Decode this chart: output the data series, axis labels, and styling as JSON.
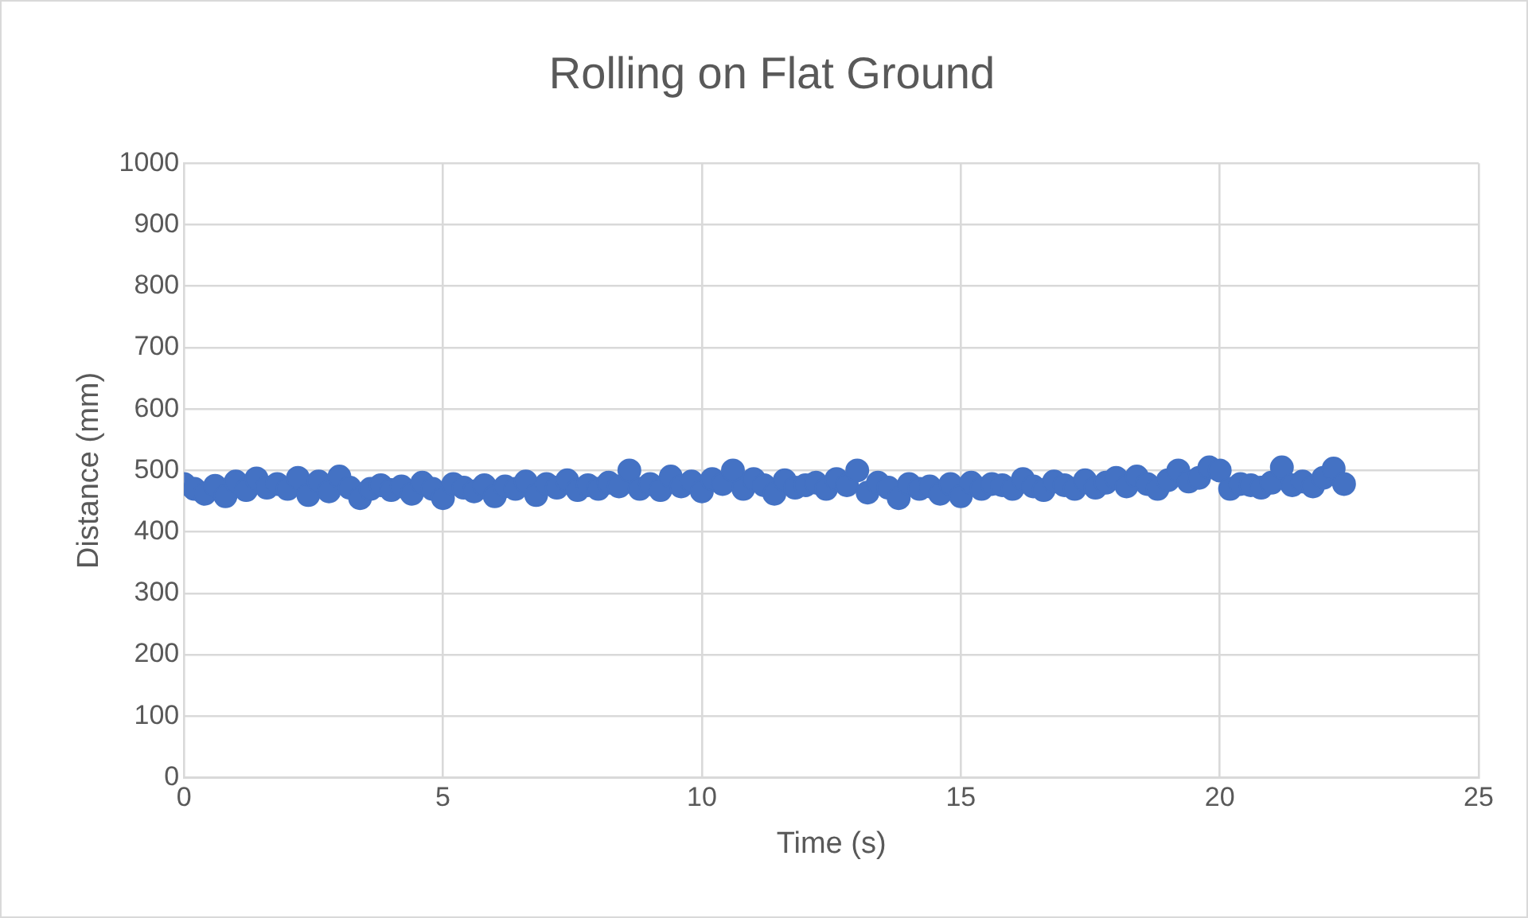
{
  "chart_data": {
    "type": "scatter",
    "title": "Rolling on Flat Ground",
    "xlabel": "Time (s)",
    "ylabel": "Distance (mm)",
    "x": [
      0,
      0.2,
      0.4,
      0.6,
      0.8,
      1.0,
      1.2,
      1.4,
      1.6,
      1.8,
      2.0,
      2.2,
      2.4,
      2.6,
      2.8,
      3.0,
      3.2,
      3.4,
      3.6,
      3.8,
      4.0,
      4.2,
      4.4,
      4.6,
      4.8,
      5.0,
      5.2,
      5.4,
      5.6,
      5.8,
      6.0,
      6.2,
      6.4,
      6.6,
      6.8,
      7.0,
      7.2,
      7.4,
      7.6,
      7.8,
      8.0,
      8.2,
      8.4,
      8.6,
      8.8,
      9.0,
      9.2,
      9.4,
      9.6,
      9.8,
      10.0,
      10.2,
      10.4,
      10.6,
      10.8,
      11.0,
      11.2,
      11.4,
      11.6,
      11.8,
      12.0,
      12.2,
      12.4,
      12.6,
      12.8,
      13.0,
      13.2,
      13.4,
      13.6,
      13.8,
      14.0,
      14.2,
      14.4,
      14.6,
      14.8,
      15.0,
      15.2,
      15.4,
      15.6,
      15.8,
      16.0,
      16.2,
      16.4,
      16.6,
      16.8,
      17.0,
      17.2,
      17.4,
      17.6,
      17.8,
      18.0,
      18.2,
      18.4,
      18.6,
      18.8,
      19.0,
      19.2,
      19.4,
      19.6,
      19.8,
      20.0,
      20.2,
      20.4,
      20.6,
      20.8,
      21.0,
      21.2,
      21.4,
      21.6,
      21.8,
      22.0,
      22.2,
      22.4
    ],
    "values": [
      478,
      470,
      462,
      475,
      458,
      482,
      468,
      487,
      472,
      478,
      470,
      488,
      460,
      482,
      466,
      490,
      472,
      455,
      470,
      476,
      468,
      474,
      462,
      480,
      470,
      455,
      478,
      472,
      466,
      476,
      458,
      474,
      470,
      482,
      460,
      478,
      472,
      484,
      468,
      476,
      470,
      480,
      474,
      500,
      470,
      478,
      468,
      490,
      474,
      482,
      466,
      486,
      478,
      500,
      470,
      486,
      476,
      462,
      484,
      472,
      476,
      480,
      470,
      486,
      476,
      500,
      464,
      480,
      472,
      455,
      478,
      470,
      474,
      462,
      478,
      458,
      480,
      470,
      478,
      476,
      470,
      486,
      474,
      468,
      482,
      476,
      470,
      484,
      472,
      480,
      488,
      474,
      490,
      478,
      470,
      484,
      500,
      482,
      488,
      505,
      500,
      470,
      478,
      476,
      472,
      480,
      505,
      476,
      482,
      474,
      488,
      503,
      478
    ],
    "color": "#4472c4",
    "marker": "circle",
    "xlim": [
      0,
      25
    ],
    "xticks": [
      0,
      5,
      10,
      15,
      20,
      25
    ],
    "ylim": [
      0,
      1000
    ],
    "yticks": [
      0,
      100,
      200,
      300,
      400,
      500,
      600,
      700,
      800,
      900,
      1000
    ],
    "grid": true,
    "legend": false
  }
}
